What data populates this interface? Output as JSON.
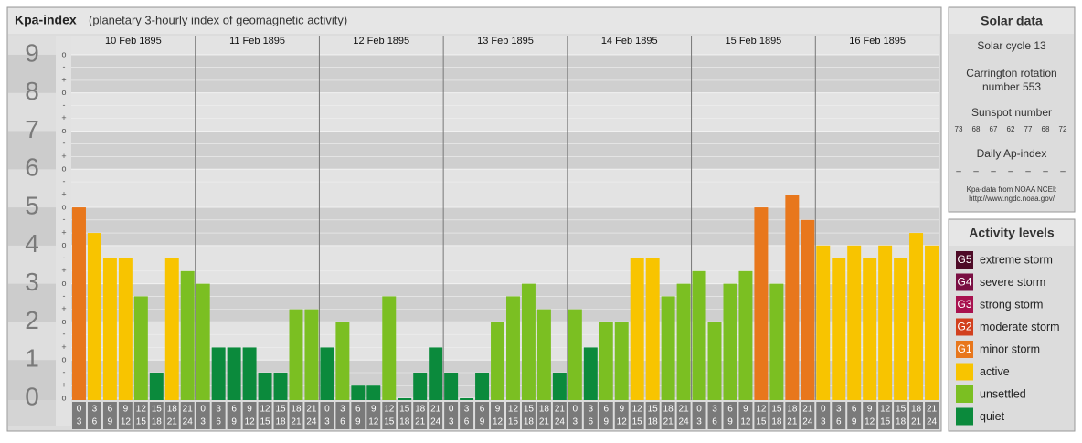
{
  "chart_data": {
    "type": "bar",
    "title": "Kpa-index",
    "subtitle": "(planetary 3-hourly index of geomagnetic activity)",
    "categories": [
      "10 Feb 1895",
      "11 Feb 1895",
      "12 Feb 1895",
      "13 Feb 1895",
      "14 Feb 1895",
      "15 Feb 1895",
      "16 Feb 1895"
    ],
    "intervals": [
      [
        0,
        3
      ],
      [
        3,
        6
      ],
      [
        6,
        9
      ],
      [
        9,
        12
      ],
      [
        12,
        15
      ],
      [
        15,
        18
      ],
      [
        18,
        21
      ],
      [
        21,
        24
      ]
    ],
    "values": [
      [
        5.0,
        4.33,
        3.67,
        3.67,
        2.67,
        0.67,
        3.67,
        3.33
      ],
      [
        3.0,
        1.33,
        1.33,
        1.33,
        0.67,
        0.67,
        2.33,
        2.33
      ],
      [
        1.33,
        2.0,
        0.33,
        0.33,
        2.67,
        0,
        0.67,
        1.33
      ],
      [
        0.67,
        0,
        0.67,
        2.0,
        2.67,
        3.0,
        2.33,
        0.67
      ],
      [
        2.33,
        1.33,
        2.0,
        2.0,
        3.67,
        3.67,
        2.67,
        3.0
      ],
      [
        3.33,
        2.0,
        3.0,
        3.33,
        5.0,
        3.0,
        5.33,
        4.67
      ],
      [
        4.0,
        3.67,
        4.0,
        3.67,
        4.0,
        3.67,
        4.33,
        4.0
      ]
    ],
    "ylim": [
      0,
      9.5
    ],
    "yticks": [
      0,
      1,
      2,
      3,
      4,
      5,
      6,
      7,
      8,
      9
    ],
    "minor_ticks": [
      {
        "value": 0,
        "label": "o"
      },
      {
        "value": 0.33,
        "label": "+"
      },
      {
        "value": 0.67,
        "label": "-"
      },
      {
        "value": 1,
        "label": "o"
      },
      {
        "value": 1.33,
        "label": "+"
      },
      {
        "value": 1.67,
        "label": "-"
      },
      {
        "value": 2,
        "label": "o"
      },
      {
        "value": 2.33,
        "label": "+"
      },
      {
        "value": 2.67,
        "label": "-"
      },
      {
        "value": 3,
        "label": "o"
      },
      {
        "value": 3.33,
        "label": "+"
      },
      {
        "value": 3.67,
        "label": "-"
      },
      {
        "value": 4,
        "label": "o"
      },
      {
        "value": 4.33,
        "label": "+"
      },
      {
        "value": 4.67,
        "label": "-"
      },
      {
        "value": 5,
        "label": "o"
      },
      {
        "value": 5.33,
        "label": "+"
      },
      {
        "value": 5.67,
        "label": "-"
      },
      {
        "value": 6,
        "label": "o"
      },
      {
        "value": 6.33,
        "label": "+"
      },
      {
        "value": 6.67,
        "label": "-"
      },
      {
        "value": 7,
        "label": "o"
      },
      {
        "value": 7.33,
        "label": "+"
      },
      {
        "value": 7.67,
        "label": "-"
      },
      {
        "value": 8,
        "label": "o"
      },
      {
        "value": 8.33,
        "label": "+"
      },
      {
        "value": 8.67,
        "label": "-"
      },
      {
        "value": 9,
        "label": "o"
      }
    ]
  },
  "solar_data": {
    "title": "Solar data",
    "solar_cycle": "Solar cycle 13",
    "carrington_1": "Carrington rotation",
    "carrington_2": "number 553",
    "sunspot_label": "Sunspot number",
    "sunspot_numbers": [
      73,
      68,
      67,
      62,
      77,
      68,
      72
    ],
    "ap_label": "Daily Ap-index",
    "ap_values": [
      "–",
      "–",
      "–",
      "–",
      "–",
      "–",
      "–"
    ],
    "source": "Kpa-data from NOAA NCEI:",
    "source_url": "http://www.ngdc.noaa.gov/"
  },
  "activity_levels": {
    "title": "Activity levels",
    "items": [
      {
        "code": "G5",
        "label": "extreme storm",
        "color": "#4d0a26"
      },
      {
        "code": "G4",
        "label": "severe storm",
        "color": "#7a0f43"
      },
      {
        "code": "G3",
        "label": "strong storm",
        "color": "#a8124f"
      },
      {
        "code": "G2",
        "label": "moderate storm",
        "color": "#d2401e"
      },
      {
        "code": "G1",
        "label": "minor storm",
        "color": "#e8771c"
      },
      {
        "label": "active",
        "color": "#f8c400"
      },
      {
        "label": "unsettled",
        "color": "#7bbf22"
      },
      {
        "label": "quiet",
        "color": "#0b8a3c"
      }
    ]
  }
}
